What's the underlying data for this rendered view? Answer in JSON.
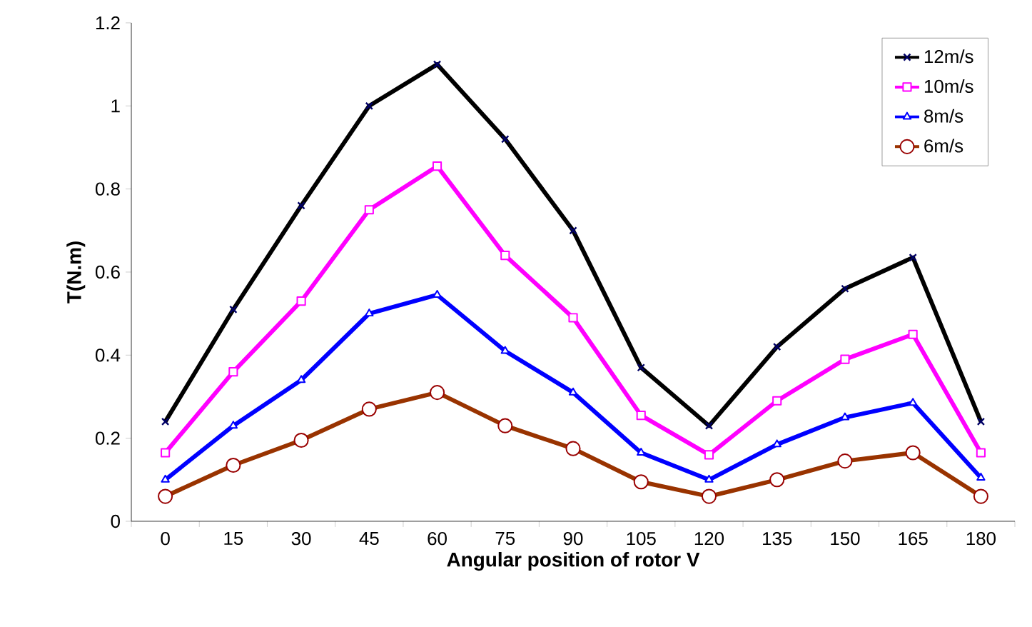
{
  "chart_data": {
    "type": "line",
    "xlabel": "Angular position of rotor V",
    "ylabel": "T(N.m)",
    "categories": [
      "0",
      "15",
      "30",
      "45",
      "60",
      "75",
      "90",
      "105",
      "120",
      "135",
      "150",
      "165",
      "180"
    ],
    "series": [
      {
        "name": "12m/s",
        "color": "#000000",
        "marker": "cross",
        "values": [
          0.24,
          0.51,
          0.76,
          1.0,
          1.1,
          0.92,
          0.7,
          0.37,
          0.23,
          0.42,
          0.56,
          0.635,
          0.24
        ]
      },
      {
        "name": "10m/s",
        "color": "#ff00ff",
        "marker": "square",
        "values": [
          0.165,
          0.36,
          0.53,
          0.75,
          0.855,
          0.64,
          0.49,
          0.255,
          0.16,
          0.29,
          0.39,
          0.45,
          0.165
        ]
      },
      {
        "name": "8m/s",
        "color": "#0000ff",
        "marker": "triangle",
        "values": [
          0.1,
          0.23,
          0.34,
          0.5,
          0.545,
          0.41,
          0.31,
          0.165,
          0.1,
          0.185,
          0.25,
          0.285,
          0.105
        ]
      },
      {
        "name": "6m/s",
        "color": "#993300",
        "marker": "circle",
        "values": [
          0.06,
          0.135,
          0.195,
          0.27,
          0.31,
          0.23,
          0.175,
          0.095,
          0.06,
          0.1,
          0.145,
          0.165,
          0.06
        ]
      }
    ],
    "ylim": [
      0,
      1.2
    ],
    "yticks": [
      0,
      0.2,
      0.4,
      0.6,
      0.8,
      1,
      1.2
    ],
    "grid": false,
    "legend": "top right",
    "line_style": "solid"
  }
}
